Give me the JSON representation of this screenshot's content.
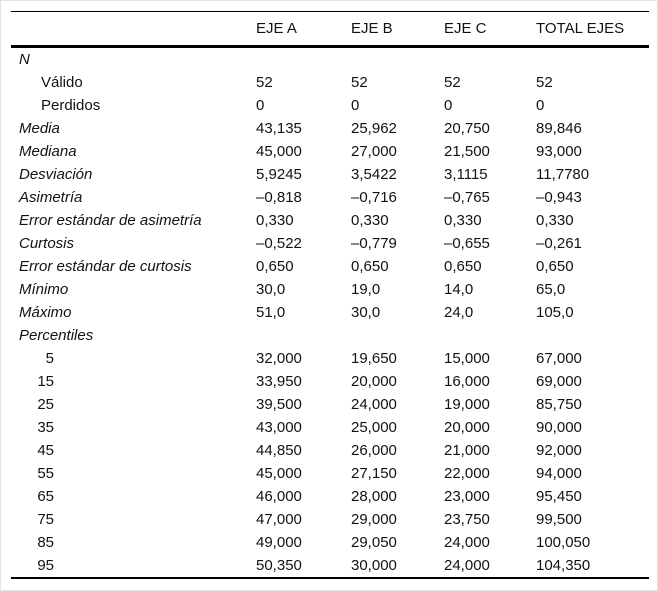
{
  "table": {
    "columns": [
      "EJE A",
      "EJE B",
      "EJE C",
      "TOTAL EJES"
    ],
    "rows": [
      {
        "label": "N",
        "style": "stat",
        "values": [
          "",
          "",
          "",
          ""
        ]
      },
      {
        "label": "Válido",
        "style": "sub",
        "values": [
          "52",
          "52",
          "52",
          "52"
        ]
      },
      {
        "label": "Perdidos",
        "style": "sub",
        "values": [
          "0",
          "0",
          "0",
          "0"
        ]
      },
      {
        "label": "Media",
        "style": "stat",
        "values": [
          "43,135",
          "25,962",
          "20,750",
          "89,846"
        ]
      },
      {
        "label": "Mediana",
        "style": "stat",
        "values": [
          "45,000",
          "27,000",
          "21,500",
          "93,000"
        ]
      },
      {
        "label": "Desviación",
        "style": "stat",
        "values": [
          "5,9245",
          "3,5422",
          "3,1115",
          "11,7780"
        ]
      },
      {
        "label": "Asimetría",
        "style": "stat",
        "values": [
          "–0,818",
          "–0,716",
          "–0,765",
          "–0,943"
        ]
      },
      {
        "label": "Error estándar de asimetría",
        "style": "stat",
        "values": [
          "0,330",
          "0,330",
          "0,330",
          "0,330"
        ]
      },
      {
        "label": "Curtosis",
        "style": "stat",
        "values": [
          "–0,522",
          "–0,779",
          "–0,655",
          "–0,261"
        ]
      },
      {
        "label": "Error estándar de curtosis",
        "style": "stat",
        "values": [
          "0,650",
          "0,650",
          "0,650",
          "0,650"
        ]
      },
      {
        "label": "Mínimo",
        "style": "stat",
        "values": [
          "30,0",
          "19,0",
          "14,0",
          "65,0"
        ]
      },
      {
        "label": "Máximo",
        "style": "stat",
        "values": [
          "51,0",
          "30,0",
          "24,0",
          "105,0"
        ]
      },
      {
        "label": "Percentiles",
        "style": "stat",
        "values": [
          "",
          "",
          "",
          ""
        ]
      },
      {
        "label": "5",
        "style": "pct",
        "values": [
          "32,000",
          "19,650",
          "15,000",
          "67,000"
        ]
      },
      {
        "label": "15",
        "style": "pct",
        "values": [
          "33,950",
          "20,000",
          "16,000",
          "69,000"
        ]
      },
      {
        "label": "25",
        "style": "pct",
        "values": [
          "39,500",
          "24,000",
          "19,000",
          "85,750"
        ]
      },
      {
        "label": "35",
        "style": "pct",
        "values": [
          "43,000",
          "25,000",
          "20,000",
          "90,000"
        ]
      },
      {
        "label": "45",
        "style": "pct",
        "values": [
          "44,850",
          "26,000",
          "21,000",
          "92,000"
        ]
      },
      {
        "label": "55",
        "style": "pct",
        "values": [
          "45,000",
          "27,150",
          "22,000",
          "94,000"
        ]
      },
      {
        "label": "65",
        "style": "pct",
        "values": [
          "46,000",
          "28,000",
          "23,000",
          "95,450"
        ]
      },
      {
        "label": "75",
        "style": "pct",
        "values": [
          "47,000",
          "29,000",
          "23,750",
          "99,500"
        ]
      },
      {
        "label": "85",
        "style": "pct",
        "values": [
          "49,000",
          "29,050",
          "24,000",
          "100,050"
        ]
      },
      {
        "label": "95",
        "style": "pct",
        "values": [
          "50,350",
          "30,000",
          "24,000",
          "104,350"
        ]
      }
    ]
  }
}
